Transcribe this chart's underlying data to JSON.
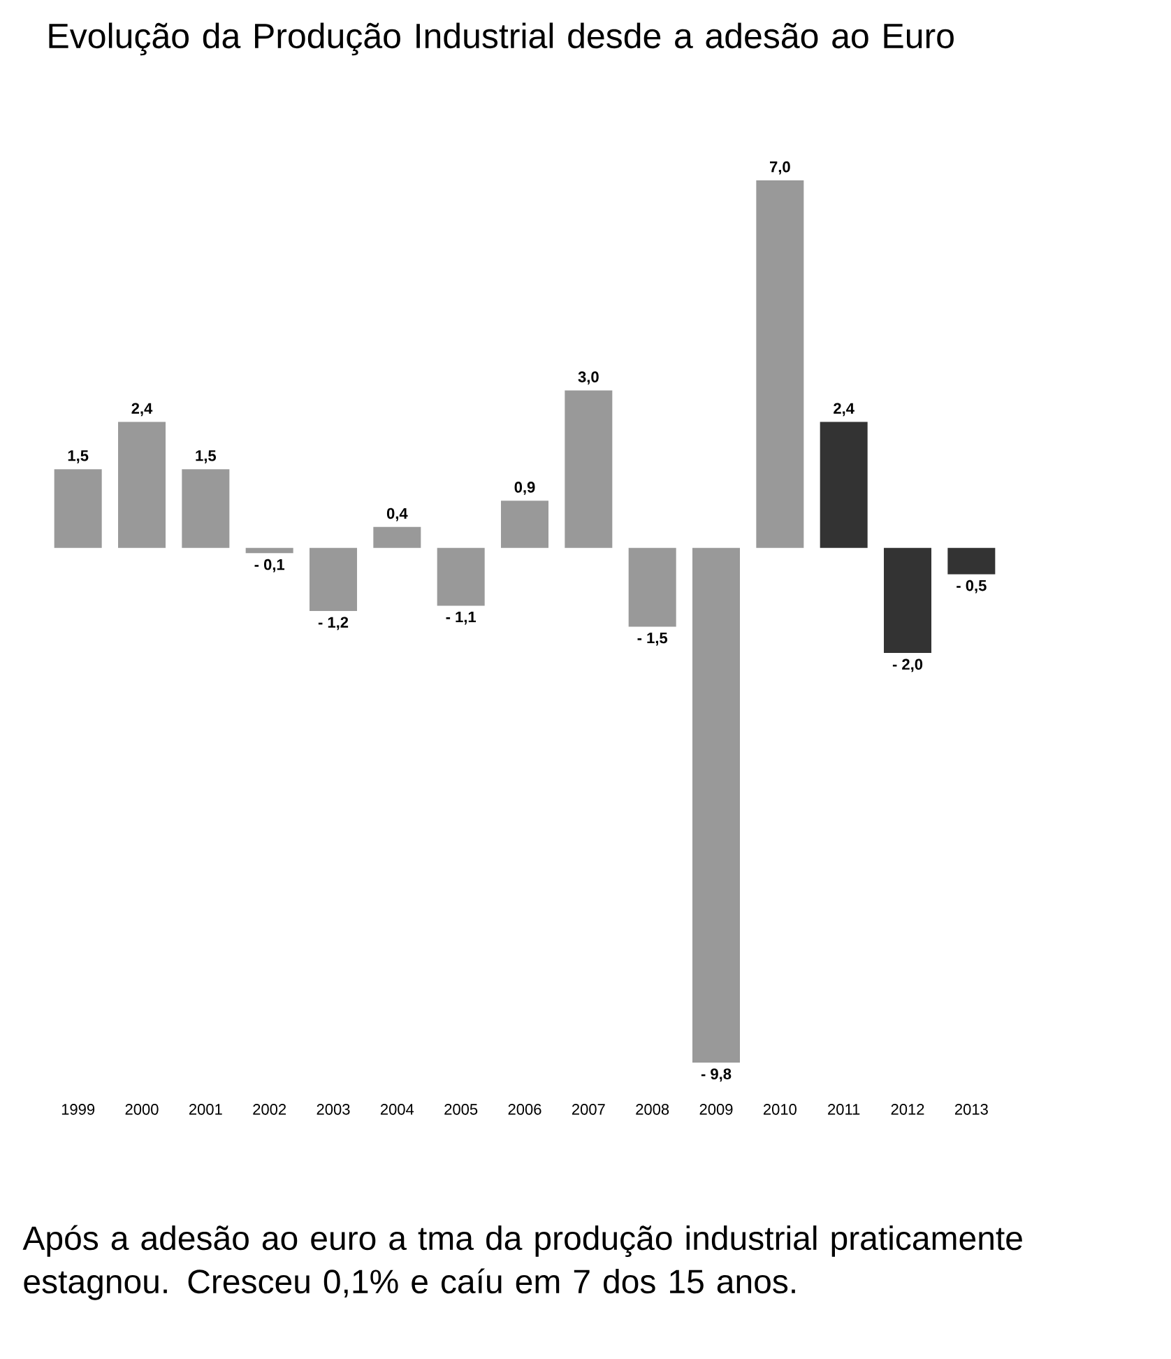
{
  "chart_data": {
    "type": "bar",
    "title": "Evolução da Produção Industrial desde a adesão ao Euro",
    "categories": [
      "1999",
      "2000",
      "2001",
      "2002",
      "2003",
      "2004",
      "2005",
      "2006",
      "2007",
      "2008",
      "2009",
      "2010",
      "2011",
      "2012",
      "2013"
    ],
    "values": [
      1.5,
      2.4,
      1.5,
      -0.1,
      -1.2,
      0.4,
      -1.1,
      0.9,
      3.0,
      -1.5,
      -9.8,
      7.0,
      2.4,
      -2.0,
      -0.5
    ],
    "colors": [
      "#999999",
      "#999999",
      "#999999",
      "#999999",
      "#999999",
      "#999999",
      "#999999",
      "#999999",
      "#999999",
      "#999999",
      "#999999",
      "#999999",
      "#333333",
      "#333333",
      "#333333"
    ],
    "value_labels": [
      "1,5",
      "2,4",
      "1,5",
      "- 0,1",
      "- 1,2",
      "0,4",
      "- 1,1",
      "0,9",
      "3,0",
      "- 1,5",
      "- 9,8",
      "7,0",
      "2,4",
      "- 2,0",
      "- 0,5"
    ],
    "annotations": [
      "Após a adesão ao euro a tma da produção industrial praticamente estagnou. Cresceu 0,1% e caíu em 7 dos 15 anos."
    ]
  }
}
